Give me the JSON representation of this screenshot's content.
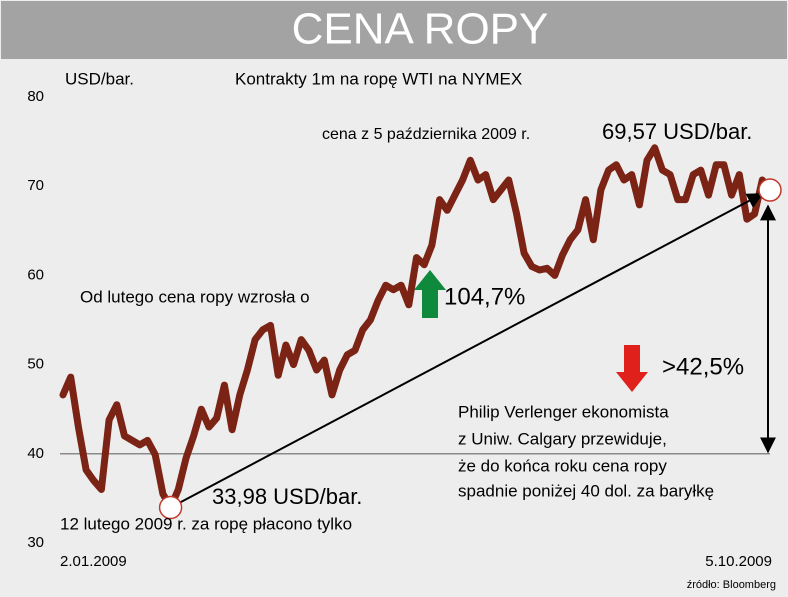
{
  "chart_data": {
    "type": "line",
    "title": "CENA ROPY",
    "y_label": "USD/bar.",
    "subtitle": "Kontrakty 1m na ropę WTI na NYMEX",
    "source": "źródło: Bloomberg",
    "color": "#7b2314",
    "ylim": [
      30,
      80
    ],
    "yticks": [
      30,
      40,
      50,
      60,
      70,
      80
    ],
    "reference_line": 40,
    "categories": [
      "2.01.2009",
      null,
      null,
      null,
      null,
      null,
      null,
      null,
      null,
      null,
      null,
      null,
      null,
      null,
      null,
      null,
      null,
      null,
      null,
      null,
      null,
      null,
      null,
      null,
      null,
      null,
      null,
      null,
      null,
      null,
      null,
      null,
      null,
      null,
      null,
      null,
      null,
      null,
      null,
      null,
      null,
      null,
      null,
      null,
      null,
      null,
      null,
      null,
      null,
      null,
      null,
      null,
      null,
      null,
      null,
      null,
      null,
      null,
      null,
      null,
      null,
      null,
      null,
      null,
      null,
      null,
      null,
      null,
      null,
      null,
      null,
      null,
      null,
      null,
      null,
      null,
      null,
      null,
      null,
      null,
      null,
      null,
      null,
      null,
      null,
      null,
      null,
      null,
      null,
      null,
      null,
      null,
      "5.10.2009"
    ],
    "values": [
      46.6,
      48.6,
      43,
      38.2,
      37,
      36,
      43.8,
      45.5,
      42,
      41.5,
      41,
      41.5,
      39.9,
      35.5,
      33.98,
      36,
      39.5,
      42,
      45,
      43,
      44,
      47.7,
      42.7,
      46.6,
      49.4,
      52.8,
      53.9,
      54.4,
      48.8,
      52.2,
      50,
      52.8,
      51.6,
      49.4,
      50.5,
      46.6,
      49.4,
      51.1,
      51.6,
      53.9,
      55,
      57.2,
      58.9,
      58.4,
      58.9,
      56.7,
      62,
      61.2,
      63.4,
      68.5,
      67.3,
      69,
      70.7,
      72.9,
      70.7,
      71.3,
      68.5,
      69.6,
      70.7,
      67,
      62.5,
      61,
      60.6,
      60.8,
      60,
      62.3,
      64,
      65.1,
      68.5,
      64,
      69.6,
      71.8,
      72.4,
      70.7,
      71.3,
      67.9,
      72.9,
      74.3,
      71.8,
      71.3,
      68.5,
      68.5,
      71.3,
      71.8,
      69,
      72.4,
      72.4,
      69,
      71.3,
      66.3,
      66.9,
      70.7,
      69.57
    ],
    "annotations": [
      "cena z 5 października 2009 r.",
      "69,57 USD/bar.",
      "Od lutego cena ropy wzrosła o",
      "104,7%",
      ">42,5%",
      "Philip Verlenger ekonomista",
      "z Uniw. Calgary przewiduje,",
      "że do końca roku cena ropy",
      "spadnie poniżej 40 dol. za baryłkę",
      "33,98 USD/bar.",
      "12 lutego 2009 r. za ropę płacono tylko"
    ]
  }
}
